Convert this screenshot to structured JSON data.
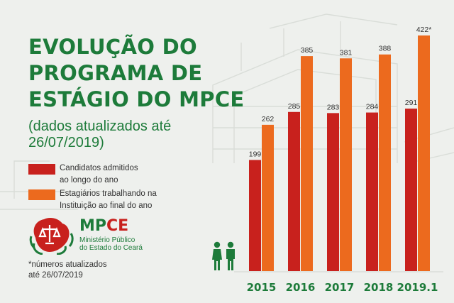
{
  "title_lines": [
    "EVOLUÇÃO DO",
    "PROGRAMA DE",
    "ESTÁGIO DO MPCE"
  ],
  "subtitle": "(dados atualizados até 26/07/2019)",
  "legend": [
    {
      "label": "Candidatos admitidos\nao longo do ano",
      "color": "#c8211d"
    },
    {
      "label": "Estagiários trabalhando na\nInstituição ao final do ano",
      "color": "#ec6a1e"
    }
  ],
  "logo": {
    "name_green": "MP",
    "name_red": "CE",
    "subtitle": "Ministério Público\ndo Estado do Ceará"
  },
  "footnote": "*números atualizados\naté 26/07/2019",
  "colors": {
    "green": "#1d7b3a",
    "red": "#c8211d",
    "orange": "#ec6a1e",
    "background": "#eef0ed"
  },
  "icons": [
    "people-icon",
    "mpce-logo-icon"
  ],
  "chart_data": {
    "type": "bar",
    "categories": [
      "2015",
      "2016",
      "2017",
      "2018",
      "2019.1"
    ],
    "series": [
      {
        "name": "Candidatos admitidos ao longo do ano",
        "color": "#c8211d",
        "values": [
          199,
          285,
          283,
          284,
          291
        ],
        "labels": [
          "199",
          "285",
          "283",
          "284",
          "291"
        ]
      },
      {
        "name": "Estagiários trabalhando na Instituição ao final do ano",
        "color": "#ec6a1e",
        "values": [
          262,
          385,
          381,
          388,
          422
        ],
        "labels": [
          "262",
          "385",
          "381",
          "388",
          "422*"
        ]
      }
    ],
    "ylim": [
      0,
      422
    ],
    "grid": false,
    "legend_position": "left"
  }
}
